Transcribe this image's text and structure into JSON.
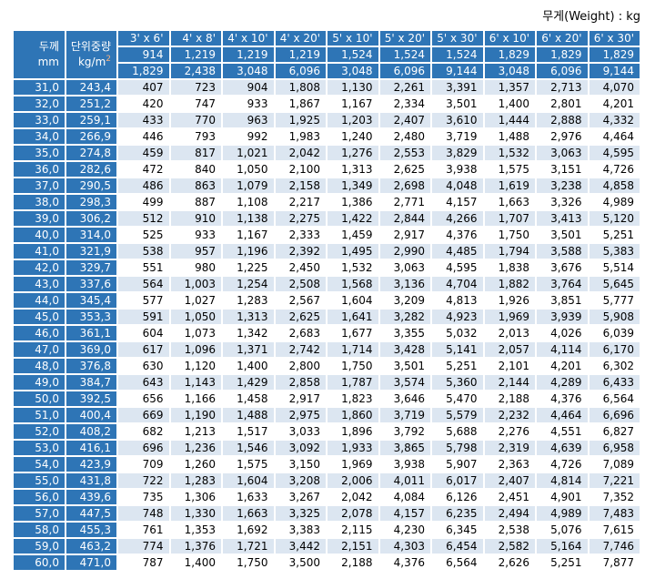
{
  "title": "무게(Weight) : kg",
  "colors": {
    "header_blue": "#2E75B6",
    "row_alt_light_blue": "#DCE6F1",
    "row_white": "#FFFFFF",
    "superscript_orange": "#F4B183",
    "text_black": "#000000",
    "text_white": "#FFFFFF"
  },
  "header": {
    "thickness_line1": "두께",
    "thickness_line2": "mm",
    "unit_weight_line1": "단위중량",
    "unit_weight_line2": "kg/m",
    "unit_weight_sup": "2",
    "sizes": [
      "3' x 6'",
      "4' x 8'",
      "4' x 10'",
      "4' x 20'",
      "5' x 10'",
      "5' x 20'",
      "5' x 30'",
      "6' x 10'",
      "6' x 20'",
      "6' x 30'"
    ],
    "widths_mm": [
      "914",
      "1,219",
      "1,219",
      "1,219",
      "1,524",
      "1,524",
      "1,524",
      "1,829",
      "1,829",
      "1,829"
    ],
    "lengths_mm": [
      "1,829",
      "2,438",
      "3,048",
      "6,096",
      "3,048",
      "6,096",
      "9,144",
      "3,048",
      "6,096",
      "9,144"
    ]
  },
  "table": {
    "rows": [
      {
        "thickness": "31,0",
        "unit_weight": "243,4",
        "values": [
          "407",
          "723",
          "904",
          "1,808",
          "1,130",
          "2,261",
          "3,391",
          "1,357",
          "2,713",
          "4,070"
        ]
      },
      {
        "thickness": "32,0",
        "unit_weight": "251,2",
        "values": [
          "420",
          "747",
          "933",
          "1,867",
          "1,167",
          "2,334",
          "3,501",
          "1,400",
          "2,801",
          "4,201"
        ]
      },
      {
        "thickness": "33,0",
        "unit_weight": "259,1",
        "values": [
          "433",
          "770",
          "963",
          "1,925",
          "1,203",
          "2,407",
          "3,610",
          "1,444",
          "2,888",
          "4,332"
        ]
      },
      {
        "thickness": "34,0",
        "unit_weight": "266,9",
        "values": [
          "446",
          "793",
          "992",
          "1,983",
          "1,240",
          "2,480",
          "3,719",
          "1,488",
          "2,976",
          "4,464"
        ]
      },
      {
        "thickness": "35,0",
        "unit_weight": "274,8",
        "values": [
          "459",
          "817",
          "1,021",
          "2,042",
          "1,276",
          "2,553",
          "3,829",
          "1,532",
          "3,063",
          "4,595"
        ]
      },
      {
        "thickness": "36,0",
        "unit_weight": "282,6",
        "values": [
          "472",
          "840",
          "1,050",
          "2,100",
          "1,313",
          "2,625",
          "3,938",
          "1,575",
          "3,151",
          "4,726"
        ]
      },
      {
        "thickness": "37,0",
        "unit_weight": "290,5",
        "values": [
          "486",
          "863",
          "1,079",
          "2,158",
          "1,349",
          "2,698",
          "4,048",
          "1,619",
          "3,238",
          "4,858"
        ]
      },
      {
        "thickness": "38,0",
        "unit_weight": "298,3",
        "values": [
          "499",
          "887",
          "1,108",
          "2,217",
          "1,386",
          "2,771",
          "4,157",
          "1,663",
          "3,326",
          "4,989"
        ]
      },
      {
        "thickness": "39,0",
        "unit_weight": "306,2",
        "values": [
          "512",
          "910",
          "1,138",
          "2,275",
          "1,422",
          "2,844",
          "4,266",
          "1,707",
          "3,413",
          "5,120"
        ]
      },
      {
        "thickness": "40,0",
        "unit_weight": "314,0",
        "values": [
          "525",
          "933",
          "1,167",
          "2,333",
          "1,459",
          "2,917",
          "4,376",
          "1,750",
          "3,501",
          "5,251"
        ]
      },
      {
        "thickness": "41,0",
        "unit_weight": "321,9",
        "values": [
          "538",
          "957",
          "1,196",
          "2,392",
          "1,495",
          "2,990",
          "4,485",
          "1,794",
          "3,588",
          "5,383"
        ]
      },
      {
        "thickness": "42,0",
        "unit_weight": "329,7",
        "values": [
          "551",
          "980",
          "1,225",
          "2,450",
          "1,532",
          "3,063",
          "4,595",
          "1,838",
          "3,676",
          "5,514"
        ]
      },
      {
        "thickness": "43,0",
        "unit_weight": "337,6",
        "values": [
          "564",
          "1,003",
          "1,254",
          "2,508",
          "1,568",
          "3,136",
          "4,704",
          "1,882",
          "3,764",
          "5,645"
        ]
      },
      {
        "thickness": "44,0",
        "unit_weight": "345,4",
        "values": [
          "577",
          "1,027",
          "1,283",
          "2,567",
          "1,604",
          "3,209",
          "4,813",
          "1,926",
          "3,851",
          "5,777"
        ]
      },
      {
        "thickness": "45,0",
        "unit_weight": "353,3",
        "values": [
          "591",
          "1,050",
          "1,313",
          "2,625",
          "1,641",
          "3,282",
          "4,923",
          "1,969",
          "3,939",
          "5,908"
        ]
      },
      {
        "thickness": "46,0",
        "unit_weight": "361,1",
        "values": [
          "604",
          "1,073",
          "1,342",
          "2,683",
          "1,677",
          "3,355",
          "5,032",
          "2,013",
          "4,026",
          "6,039"
        ]
      },
      {
        "thickness": "47,0",
        "unit_weight": "369,0",
        "values": [
          "617",
          "1,096",
          "1,371",
          "2,742",
          "1,714",
          "3,428",
          "5,141",
          "2,057",
          "4,114",
          "6,170"
        ]
      },
      {
        "thickness": "48,0",
        "unit_weight": "376,8",
        "values": [
          "630",
          "1,120",
          "1,400",
          "2,800",
          "1,750",
          "3,501",
          "5,251",
          "2,101",
          "4,201",
          "6,302"
        ]
      },
      {
        "thickness": "49,0",
        "unit_weight": "384,7",
        "values": [
          "643",
          "1,143",
          "1,429",
          "2,858",
          "1,787",
          "3,574",
          "5,360",
          "2,144",
          "4,289",
          "6,433"
        ]
      },
      {
        "thickness": "50,0",
        "unit_weight": "392,5",
        "values": [
          "656",
          "1,166",
          "1,458",
          "2,917",
          "1,823",
          "3,646",
          "5,470",
          "2,188",
          "4,376",
          "6,564"
        ]
      },
      {
        "thickness": "51,0",
        "unit_weight": "400,4",
        "values": [
          "669",
          "1,190",
          "1,488",
          "2,975",
          "1,860",
          "3,719",
          "5,579",
          "2,232",
          "4,464",
          "6,696"
        ]
      },
      {
        "thickness": "52,0",
        "unit_weight": "408,2",
        "values": [
          "682",
          "1,213",
          "1,517",
          "3,033",
          "1,896",
          "3,792",
          "5,688",
          "2,276",
          "4,551",
          "6,827"
        ]
      },
      {
        "thickness": "53,0",
        "unit_weight": "416,1",
        "values": [
          "696",
          "1,236",
          "1,546",
          "3,092",
          "1,933",
          "3,865",
          "5,798",
          "2,319",
          "4,639",
          "6,958"
        ]
      },
      {
        "thickness": "54,0",
        "unit_weight": "423,9",
        "values": [
          "709",
          "1,260",
          "1,575",
          "3,150",
          "1,969",
          "3,938",
          "5,907",
          "2,363",
          "4,726",
          "7,089"
        ]
      },
      {
        "thickness": "55,0",
        "unit_weight": "431,8",
        "values": [
          "722",
          "1,283",
          "1,604",
          "3,208",
          "2,006",
          "4,011",
          "6,017",
          "2,407",
          "4,814",
          "7,221"
        ]
      },
      {
        "thickness": "56,0",
        "unit_weight": "439,6",
        "values": [
          "735",
          "1,306",
          "1,633",
          "3,267",
          "2,042",
          "4,084",
          "6,126",
          "2,451",
          "4,901",
          "7,352"
        ]
      },
      {
        "thickness": "57,0",
        "unit_weight": "447,5",
        "values": [
          "748",
          "1,330",
          "1,663",
          "3,325",
          "2,078",
          "4,157",
          "6,235",
          "2,494",
          "4,989",
          "7,483"
        ]
      },
      {
        "thickness": "58,0",
        "unit_weight": "455,3",
        "values": [
          "761",
          "1,353",
          "1,692",
          "3,383",
          "2,115",
          "4,230",
          "6,345",
          "2,538",
          "5,076",
          "7,615"
        ]
      },
      {
        "thickness": "59,0",
        "unit_weight": "463,2",
        "values": [
          "774",
          "1,376",
          "1,721",
          "3,442",
          "2,151",
          "4,303",
          "6,454",
          "2,582",
          "5,164",
          "7,746"
        ]
      },
      {
        "thickness": "60,0",
        "unit_weight": "471,0",
        "values": [
          "787",
          "1,400",
          "1,750",
          "3,500",
          "2,188",
          "4,376",
          "6,564",
          "2,626",
          "5,251",
          "7,877"
        ]
      }
    ]
  }
}
